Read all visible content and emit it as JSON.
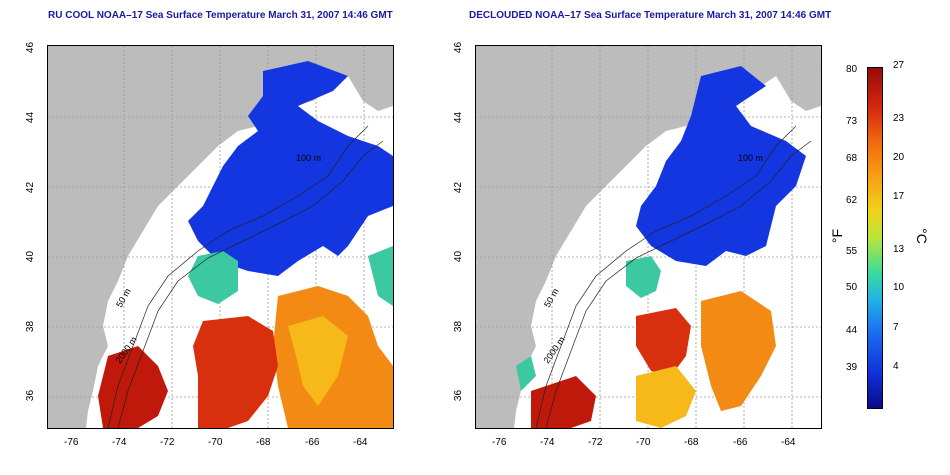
{
  "titles": {
    "left": "RU COOL NOAA–17 Sea Surface Temperature March 31, 2007 14:46 GMT",
    "right": "DECLOUDED NOAA–17 Sea Surface Temperature March 31, 2007 14:46 GMT"
  },
  "axes": {
    "lat_ticks": [
      "46",
      "44",
      "42",
      "40",
      "38",
      "36"
    ],
    "lon_ticks": [
      "-76",
      "-74",
      "-72",
      "-70",
      "-68",
      "-66",
      "-64"
    ]
  },
  "contour_labels": {
    "c100": "100 m",
    "c50": "50 m",
    "c2000": "2000 m",
    "c50b": "50"
  },
  "colorbar": {
    "fahrenheit_unit": "°F",
    "celsius_unit": "°C",
    "fahrenheit": [
      "80",
      "73",
      "68",
      "62",
      "55",
      "50",
      "44",
      "39"
    ],
    "celsius": [
      "27",
      "23",
      "20",
      "17",
      "13",
      "10",
      "7",
      "4"
    ]
  },
  "colors": {
    "land": "#bcbcbc",
    "cold": "#1436e0",
    "warm": "#e8400c",
    "hot": "#c0180a",
    "mid": "#f7a014",
    "teal": "#3cc8a0"
  }
}
